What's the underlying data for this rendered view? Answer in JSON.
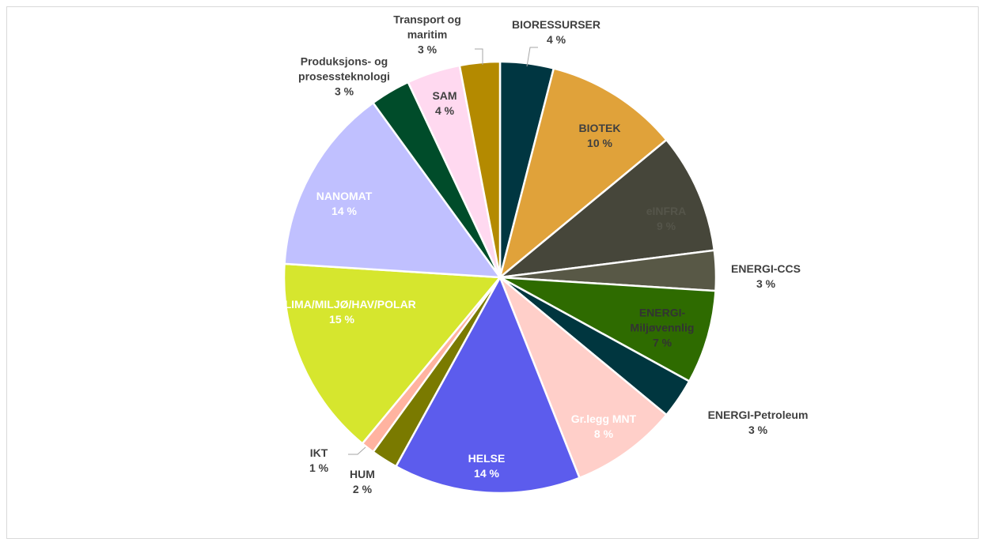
{
  "chart_data": {
    "type": "pie",
    "categories": [
      "BIORESSURSER",
      "BIOTEK",
      "eINFRA",
      "ENERGI-CCS",
      "ENERGI-Miljøvennlig",
      "ENERGI-Petroleum",
      "Gr.legg MNT",
      "HELSE",
      "HUM",
      "IKT",
      "KLIMA/MILJØ/HAV/POLAR",
      "NANOMAT",
      "Produksjons- og prosessteknologi",
      "SAM",
      "Transport og maritim"
    ],
    "values": [
      4,
      10,
      9,
      3,
      7,
      3,
      8,
      14,
      2,
      1,
      15,
      14,
      3,
      4,
      3
    ],
    "value_labels": [
      "4 %",
      "10 %",
      "9 %",
      "3 %",
      "7 %",
      "3 %",
      "8 %",
      "14 %",
      "2 %",
      "1 %",
      "15 %",
      "14 %",
      "3 %",
      "4 %",
      "3 %"
    ],
    "colors": [
      "#003641",
      "#e0a23a",
      "#46463a",
      "#585846",
      "#2e6b00",
      "#00363f",
      "#ffcfc9",
      "#5c5ced",
      "#7a7a00",
      "#ffb3a0",
      "#d6e62e",
      "#c0c0ff",
      "#004c2a",
      "#ffd9f0",
      "#b48a00"
    ]
  }
}
